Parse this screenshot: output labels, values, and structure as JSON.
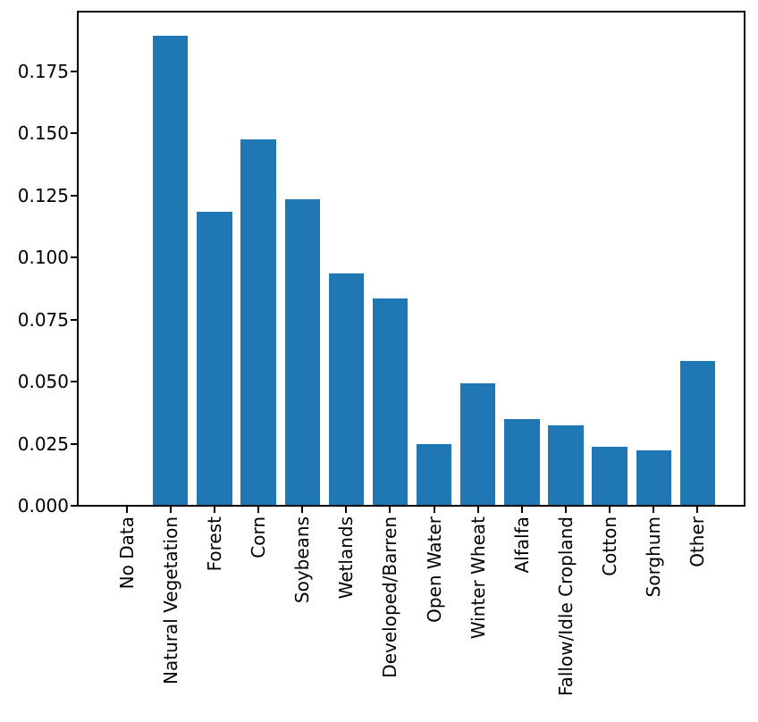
{
  "figure": {
    "background_color": "#ffffff",
    "text_color": "#000000",
    "spine_color": "#000000"
  },
  "chart_data": {
    "type": "bar",
    "title": "",
    "xlabel": "",
    "ylabel": "",
    "bar_color": "#1f77b4",
    "grid": false,
    "categories": [
      "No Data",
      "Natural Vegetation",
      "Forest",
      "Corn",
      "Soybeans",
      "Wetlands",
      "Developed/Barren",
      "Open Water",
      "Winter Wheat",
      "Alfalfa",
      "Fallow/Idle Cropland",
      "Cotton",
      "Sorghum",
      "Other"
    ],
    "values": [
      0.0,
      0.189,
      0.118,
      0.147,
      0.123,
      0.093,
      0.083,
      0.0245,
      0.049,
      0.0345,
      0.032,
      0.0235,
      0.022,
      0.058
    ],
    "ytick_labels": [
      "0.000",
      "0.025",
      "0.050",
      "0.075",
      "0.100",
      "0.125",
      "0.150",
      "0.175"
    ],
    "ylim": [
      0.0,
      0.199
    ],
    "xtick_rotation_degrees": 90
  }
}
